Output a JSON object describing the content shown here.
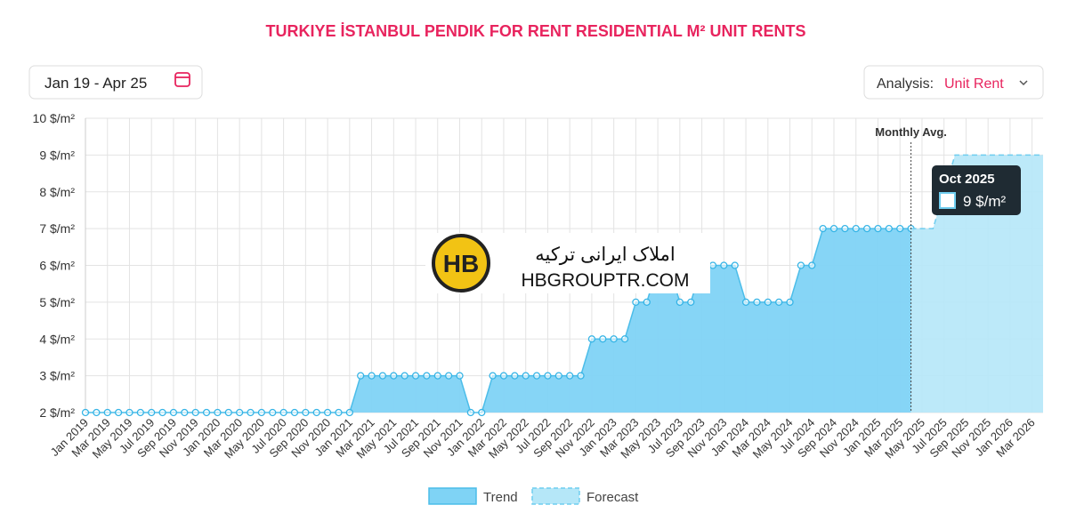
{
  "header": {
    "title": "TURKIYE İSTANBUL PENDIK FOR RENT RESIDENTIAL M² UNIT RENTS",
    "date_range": "Jan 19 - Apr 25",
    "analysis_label": "Analysis:",
    "analysis_value": "Unit Rent"
  },
  "watermark": {
    "logo": "HB",
    "line1": "املاک ایرانی ترکیه",
    "line2": "HBGROUPTR.COM"
  },
  "chart_data": {
    "type": "area",
    "categories": [
      "Jan 2019",
      null,
      "Mar 2019",
      null,
      "May 2019",
      null,
      "Jul 2019",
      null,
      "Sep 2019",
      null,
      "Nov 2019",
      null,
      "Jan 2020",
      null,
      "Mar 2020",
      null,
      "May 2020",
      null,
      "Jul 2020",
      null,
      "Sep 2020",
      null,
      "Nov 2020",
      null,
      "Jan 2021",
      null,
      "Mar 2021",
      null,
      "May 2021",
      null,
      "Jul 2021",
      null,
      "Sep 2021",
      null,
      "Nov 2021",
      null,
      "Jan 2022",
      null,
      "Mar 2022",
      null,
      "May 2022",
      null,
      "Jul 2022",
      null,
      "Sep 2022",
      null,
      "Nov 2022",
      null,
      "Jan 2023",
      null,
      "Mar 2023",
      null,
      "May 2023",
      null,
      "Jul 2023",
      null,
      "Sep 2023",
      null,
      "Nov 2023",
      null,
      "Jan 2024",
      null,
      "Mar 2024",
      null,
      "May 2024",
      null,
      "Jul 2024",
      null,
      "Sep 2024",
      null,
      "Nov 2024",
      null,
      "Jan 2025",
      null,
      "Mar 2025",
      null,
      "May 2025",
      null,
      "Jul 2025",
      null,
      "Sep 2025",
      null,
      "Nov 2025",
      null,
      "Jan 2026",
      null,
      "Mar 2026",
      null
    ],
    "series": [
      {
        "name": "Trend",
        "color": "#7fd3f5",
        "values": [
          2,
          2,
          2,
          2,
          2,
          2,
          2,
          2,
          2,
          2,
          2,
          2,
          2,
          2,
          2,
          2,
          2,
          2,
          2,
          2,
          2,
          2,
          2,
          2,
          2,
          3,
          3,
          3,
          3,
          3,
          3,
          3,
          3,
          3,
          3,
          2,
          2,
          3,
          3,
          3,
          3,
          3,
          3,
          3,
          3,
          3,
          4,
          4,
          4,
          4,
          5,
          5,
          6,
          6,
          5,
          5,
          6,
          6,
          6,
          6,
          5,
          5,
          5,
          5,
          5,
          6,
          6,
          7,
          7,
          7,
          7,
          7,
          7,
          7,
          7,
          7,
          null,
          null,
          null,
          null,
          null,
          null,
          null,
          null,
          null,
          null,
          null,
          null
        ]
      },
      {
        "name": "Forecast",
        "color": "#b5e7f8",
        "values": [
          null,
          null,
          null,
          null,
          null,
          null,
          null,
          null,
          null,
          null,
          null,
          null,
          null,
          null,
          null,
          null,
          null,
          null,
          null,
          null,
          null,
          null,
          null,
          null,
          null,
          null,
          null,
          null,
          null,
          null,
          null,
          null,
          null,
          null,
          null,
          null,
          null,
          null,
          null,
          null,
          null,
          null,
          null,
          null,
          null,
          null,
          null,
          null,
          null,
          null,
          null,
          null,
          null,
          null,
          null,
          null,
          null,
          null,
          null,
          null,
          null,
          null,
          null,
          null,
          null,
          null,
          null,
          null,
          null,
          null,
          null,
          null,
          null,
          null,
          null,
          7,
          7,
          7,
          8,
          9,
          9,
          9,
          9,
          9,
          9,
          9,
          9,
          9
        ]
      }
    ],
    "ylim": [
      2,
      10
    ],
    "yticks": [
      {
        "value": 2,
        "label": "2 $/m²"
      },
      {
        "value": 3,
        "label": "3 $/m²"
      },
      {
        "value": 4,
        "label": "4 $/m²"
      },
      {
        "value": 5,
        "label": "5 $/m²"
      },
      {
        "value": 6,
        "label": "6 $/m²"
      },
      {
        "value": 7,
        "label": "7 $/m²"
      },
      {
        "value": 8,
        "label": "8 $/m²"
      },
      {
        "value": 9,
        "label": "9 $/m²"
      },
      {
        "value": 10,
        "label": "10 $/m²"
      }
    ],
    "grid": true,
    "annotation": "Monthly Avg.",
    "tooltip": {
      "title": "Oct 2025",
      "value": 9,
      "value_label": "9 $/m²"
    }
  }
}
